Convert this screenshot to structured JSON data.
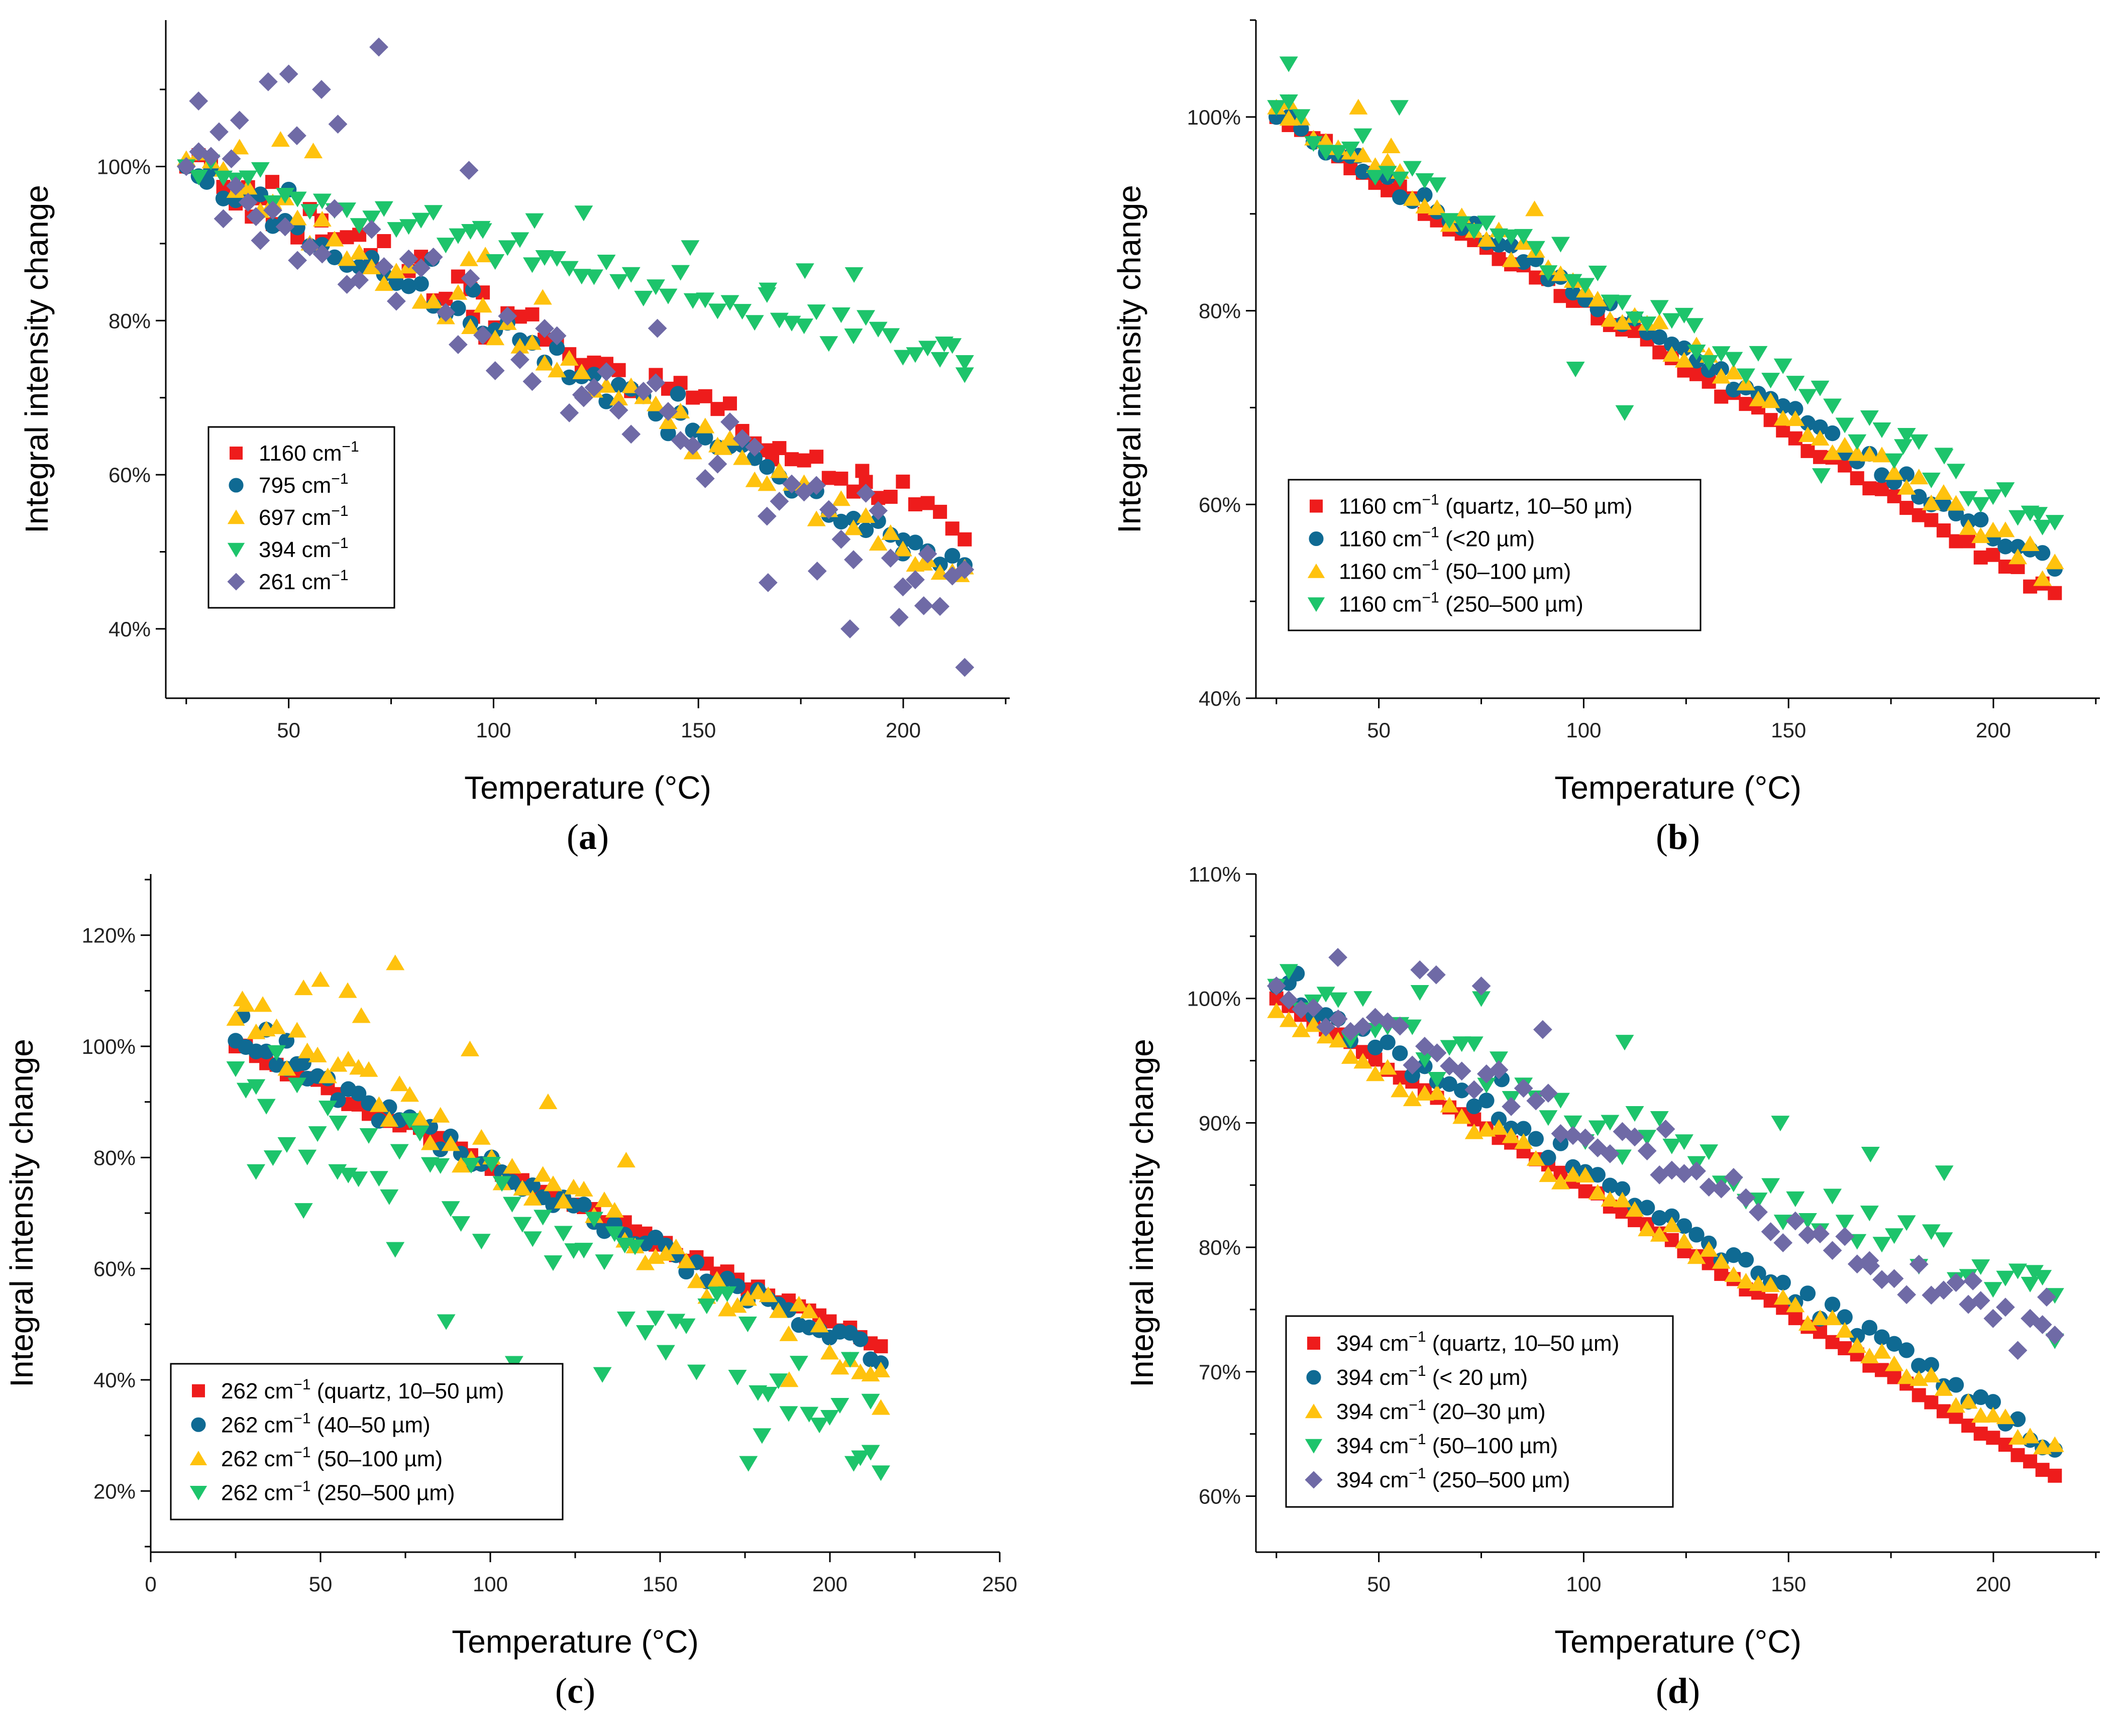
{
  "colors": {
    "red": "#ee1c1c",
    "blue": "#0f6a93",
    "yellow": "#ffc20e",
    "green": "#1dc46b",
    "purple": "#6f6aa6"
  },
  "chart_data": [
    {
      "panel": "a",
      "caption": "(a)",
      "type": "scatter",
      "xlabel": "Temperature (°C)",
      "ylabel": "Integral intensity change",
      "xlim": [
        20,
        226
      ],
      "ylim": [
        31,
        119
      ],
      "xticks": [
        50,
        100,
        150,
        200
      ],
      "xtick_labels": [
        "50",
        "100",
        "150",
        "200"
      ],
      "yticks": [
        40,
        60,
        80,
        100
      ],
      "ytick_labels": [
        "40%",
        "60%",
        "80%",
        "100%"
      ],
      "legend_position": "center-left",
      "series": [
        {
          "name": "1160 cm⁻¹",
          "label": "1160 cm",
          "sup": "−1",
          "suffix": "",
          "marker": "square",
          "color": "red",
          "start": 100,
          "end": 53,
          "noise": 2.5,
          "seed": 11,
          "outliers": [
            [
              41,
              93.5
            ],
            [
              46,
              98
            ],
            [
              58,
              93
            ],
            [
              70,
              88.5
            ],
            [
              95,
              80.5
            ],
            [
              98,
              77.8
            ],
            [
              125,
              74
            ],
            [
              168,
              62
            ],
            [
              190,
              60.5
            ]
          ]
        },
        {
          "name": "795 cm⁻¹",
          "label": "795 cm",
          "sup": "−1",
          "suffix": "",
          "marker": "circle",
          "color": "blue",
          "start": 100,
          "end": 47,
          "noise": 2,
          "seed": 12,
          "outliers": [
            [
              30,
              98
            ],
            [
              50,
              97
            ],
            [
              85,
              88
            ],
            [
              95,
              84
            ],
            [
              145,
              70.5
            ],
            [
              200,
              51.5
            ]
          ]
        },
        {
          "name": "697 cm⁻¹",
          "label": "697 cm",
          "sup": "−1",
          "suffix": "",
          "marker": "triangle-up",
          "color": "yellow",
          "start": 101,
          "end": 46,
          "noise": 2.3,
          "seed": 13,
          "outliers": [
            [
              38,
              102.5
            ],
            [
              48,
              103.5
            ],
            [
              56,
              102
            ],
            [
              94,
              88
            ],
            [
              98,
              88.5
            ],
            [
              112,
              83
            ],
            [
              156,
              63.5
            ],
            [
              205,
              48.5
            ],
            [
              214,
              47
            ]
          ]
        },
        {
          "name": "394 cm⁻¹",
          "label": "394 cm",
          "sup": "−1",
          "suffix": "",
          "marker": "triangle-down",
          "color": "green",
          "start": 100,
          "end": 75,
          "noise": 2.4,
          "seed": 14,
          "outliers": [
            [
              97,
              92
            ],
            [
              110,
              93
            ],
            [
              122,
              94
            ],
            [
              148,
              89.5
            ],
            [
              167,
              84
            ],
            [
              176,
              86.5
            ],
            [
              188,
              86
            ],
            [
              210,
              77
            ],
            [
              215,
              73
            ]
          ]
        },
        {
          "name": "261 cm⁻¹",
          "label": "261 cm",
          "sup": "−1",
          "suffix": "",
          "marker": "diamond",
          "color": "purple",
          "start": 100,
          "end": 46,
          "noise": 5.5,
          "seed": 15,
          "outliers": [
            [
              28,
              108.5
            ],
            [
              33,
              104.5
            ],
            [
              36,
              101
            ],
            [
              38,
              106
            ],
            [
              42,
              93.5
            ],
            [
              45,
              111
            ],
            [
              50,
              112
            ],
            [
              52,
              104
            ],
            [
              58,
              110
            ],
            [
              62,
              105.5
            ],
            [
              72,
              115.5
            ],
            [
              94,
              99.5
            ],
            [
              122,
              70
            ],
            [
              140,
              79
            ],
            [
              167,
              46
            ],
            [
              179,
              47.5
            ],
            [
              187,
              40
            ],
            [
              199,
              41.5
            ],
            [
              205,
              43
            ],
            [
              215,
              35
            ]
          ]
        }
      ]
    },
    {
      "panel": "b",
      "caption": "(b)",
      "type": "scatter",
      "xlabel": "Temperature (°C)",
      "ylabel": "Integral intensity change",
      "xlim": [
        20,
        226
      ],
      "ylim": [
        40,
        110
      ],
      "xticks": [
        50,
        100,
        150,
        200
      ],
      "xtick_labels": [
        "50",
        "100",
        "150",
        "200"
      ],
      "yticks": [
        40,
        60,
        80,
        100
      ],
      "ytick_labels": [
        "40%",
        "60%",
        "80%",
        "100%"
      ],
      "legend_position": "bottom-left",
      "series": [
        {
          "name": "1160 cm⁻¹ (quartz, 10–50 µm)",
          "label": "1160 cm",
          "sup": "−1",
          "suffix": " (quartz, 10–50 µm)",
          "marker": "square",
          "color": "red",
          "start": 100,
          "end": 50.5,
          "noise": 0.7,
          "seed": 21,
          "outliers": []
        },
        {
          "name": "1160 cm⁻¹ (<20 µm)",
          "label": "1160 cm",
          "sup": "−1",
          "suffix": " (<20 µm)",
          "marker": "circle",
          "color": "blue",
          "start": 100,
          "end": 53.5,
          "noise": 0.9,
          "seed": 22,
          "outliers": [
            [
              45,
              96
            ]
          ]
        },
        {
          "name": "1160 cm⁻¹ (50–100 µm)",
          "label": "1160 cm",
          "sup": "−1",
          "suffix": " (50–100 µm)",
          "marker": "triangle-up",
          "color": "yellow",
          "start": 101,
          "end": 53,
          "noise": 1.5,
          "seed": 23,
          "outliers": [
            [
              28,
              101.5
            ],
            [
              45,
              101
            ],
            [
              53,
              97
            ],
            [
              88,
              90.5
            ]
          ]
        },
        {
          "name": "1160 cm⁻¹ (250–500 µm)",
          "label": "1160 cm",
          "sup": "−1",
          "suffix": " (250–500 µm)",
          "marker": "triangle-down",
          "color": "green",
          "start": 101,
          "end": 57,
          "noise": 2,
          "seed": 24,
          "outliers": [
            [
              28,
              105.5
            ],
            [
              55,
              101
            ],
            [
              98,
              74
            ],
            [
              110,
              69.5
            ],
            [
              127,
              78.5
            ],
            [
              158,
              63
            ],
            [
              178,
              66
            ],
            [
              188,
              65
            ],
            [
              211,
              59
            ]
          ]
        }
      ]
    },
    {
      "panel": "c",
      "caption": "(c)",
      "type": "scatter",
      "xlabel": "Temperature (°C)",
      "ylabel": "Integral intensity change",
      "xlim": [
        0,
        250
      ],
      "ylim": [
        9,
        131
      ],
      "xticks": [
        0,
        50,
        100,
        150,
        200,
        250
      ],
      "xtick_labels": [
        "0",
        "50",
        "100",
        "150",
        "200",
        "250"
      ],
      "yticks": [
        20,
        40,
        60,
        80,
        100,
        120
      ],
      "ytick_labels": [
        "20%",
        "40%",
        "60%",
        "80%",
        "100%",
        "120%"
      ],
      "legend_position": "bottom-left",
      "series": [
        {
          "name": "262 cm⁻¹ (quartz, 10–50 µm)",
          "label": "262 cm",
          "sup": "−1",
          "suffix": " (quartz, 10–50 µm)",
          "marker": "square",
          "color": "red",
          "start": 100,
          "end": 46,
          "noise": 1,
          "seed": 31,
          "outliers": []
        },
        {
          "name": "262 cm⁻¹ (40–50 µm)",
          "label": "262 cm",
          "sup": "−1",
          "suffix": " (40–50 µm)",
          "marker": "circle",
          "color": "blue",
          "start": 101,
          "end": 44,
          "noise": 1.8,
          "seed": 32,
          "outliers": [
            [
              27,
              105.5
            ],
            [
              34,
              103
            ],
            [
              40,
              101
            ],
            [
              45,
              97
            ]
          ]
        },
        {
          "name": "262 cm⁻¹ (50–100 µm)",
          "label": "262 cm",
          "sup": "−1",
          "suffix": " (50–100 µm)",
          "marker": "triangle-up",
          "color": "yellow",
          "start": 105,
          "end": 42,
          "noise": 4.5,
          "seed": 33,
          "outliers": [
            [
              27,
              108.5
            ],
            [
              33,
              107.5
            ],
            [
              45,
              110.5
            ],
            [
              50,
              112
            ],
            [
              58,
              110
            ],
            [
              62,
              105.5
            ],
            [
              72,
              115
            ],
            [
              94,
              99.5
            ],
            [
              117,
              90
            ],
            [
              140,
              79.5
            ],
            [
              188,
              40
            ],
            [
              215,
              35
            ]
          ]
        },
        {
          "name": "262 cm⁻¹ (250–500 µm)",
          "label": "262 cm",
          "sup": "−1",
          "suffix": " (250–500 µm)",
          "marker": "triangle-down",
          "color": "green",
          "start": 96,
          "end": 32,
          "noise": 9,
          "seed": 34,
          "outliers": [
            [
              31,
              77.5
            ],
            [
              36,
              80
            ],
            [
              45,
              70.5
            ],
            [
              55,
              77.5
            ],
            [
              72,
              63.5
            ],
            [
              87,
              50.5
            ],
            [
              107,
              43
            ],
            [
              133,
              41
            ],
            [
              140,
              51
            ],
            [
              176,
              25
            ],
            [
              180,
              30
            ],
            [
              207,
              25
            ],
            [
              212,
              27
            ]
          ]
        }
      ]
    },
    {
      "panel": "d",
      "caption": "(d)",
      "type": "scatter",
      "xlabel": "Temperature (°C)",
      "ylabel": "Integral intensity change",
      "xlim": [
        20,
        226
      ],
      "ylim": [
        55.5,
        110
      ],
      "xticks": [
        50,
        100,
        150,
        200
      ],
      "xtick_labels": [
        "50",
        "100",
        "150",
        "200"
      ],
      "yticks": [
        60,
        70,
        80,
        90,
        100,
        110
      ],
      "ytick_labels": [
        "60%",
        "70%",
        "80%",
        "90%",
        "100%",
        "110%"
      ],
      "legend_position": "bottom-left",
      "series": [
        {
          "name": "394 cm⁻¹ (quartz, 10–50 µm)",
          "label": "394 cm",
          "sup": "−1",
          "suffix": " (quartz, 10–50 µm)",
          "marker": "square",
          "color": "red",
          "start": 100,
          "end": 61.5,
          "noise": 0.25,
          "seed": 41,
          "outliers": []
        },
        {
          "name": "394 cm⁻¹ (< 20 µm)",
          "label": "394 cm",
          "sup": "−1",
          "suffix": " (< 20 µm)",
          "marker": "circle",
          "color": "blue",
          "start": 101,
          "end": 64,
          "noise": 0.9,
          "seed": 42,
          "outliers": [
            [
              30,
              102
            ],
            [
              80,
              93.5
            ]
          ]
        },
        {
          "name": "394 cm⁻¹ (20–30 µm)",
          "label": "394 cm",
          "sup": "−1",
          "suffix": " (20–30 µm)",
          "marker": "triangle-up",
          "color": "yellow",
          "start": 99,
          "end": 63.5,
          "noise": 0.9,
          "seed": 43,
          "outliers": []
        },
        {
          "name": "394 cm⁻¹ (50–100 µm)",
          "label": "394 cm",
          "sup": "−1",
          "suffix": " (50–100 µm)",
          "marker": "triangle-down",
          "color": "green",
          "start": 101,
          "end": 75,
          "noise": 2.2,
          "seed": 44,
          "outliers": [
            [
              60,
              100.5
            ],
            [
              75,
              100
            ],
            [
              110,
              96.5
            ],
            [
              148,
              90
            ],
            [
              170,
              87.5
            ],
            [
              188,
              86
            ],
            [
              210,
              78
            ],
            [
              215,
              72.5
            ]
          ]
        },
        {
          "name": "394 cm⁻¹ (250–500 µm)",
          "label": "394 cm",
          "sup": "−1",
          "suffix": " (250–500 µm)",
          "marker": "diamond",
          "color": "purple",
          "start": 101,
          "end": 72,
          "noise": 1.8,
          "seed": 45,
          "outliers": [
            [
              40,
              103.3
            ],
            [
              60,
              102.3
            ],
            [
              64,
              101.9
            ],
            [
              75,
              101
            ],
            [
              90,
              97.5
            ],
            [
              120,
              89.5
            ],
            [
              170,
              78.5
            ],
            [
              195,
              77.3
            ],
            [
              213,
              76
            ]
          ]
        }
      ]
    }
  ]
}
